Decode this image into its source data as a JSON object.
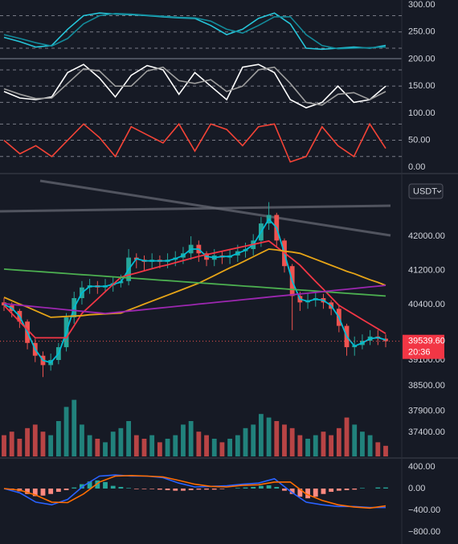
{
  "chart_data": [
    {
      "type": "oscillator",
      "ylim": [
        -10,
        309
      ],
      "yticks": [
        {
          "value": 300,
          "label": "300.00"
        },
        {
          "value": 250,
          "label": "250.00"
        },
        {
          "value": 200,
          "label": "200.00"
        },
        {
          "value": 150,
          "label": "150.00"
        },
        {
          "value": 100,
          "label": "100.00"
        },
        {
          "value": 50,
          "label": "50.00"
        },
        {
          "value": 0,
          "label": "0.00"
        }
      ],
      "levels": [
        280,
        250,
        220,
        180,
        150,
        120,
        80,
        50,
        20
      ],
      "series": [
        {
          "color": "#26c6da",
          "values": [
            240,
            232,
            222,
            225,
            255,
            280,
            285,
            283,
            282,
            280,
            278,
            276,
            275,
            262,
            245,
            255,
            275,
            285,
            265,
            220,
            218,
            220,
            222,
            220,
            225
          ]
        },
        {
          "color": "#138a9a",
          "values": [
            245,
            238,
            230,
            224,
            238,
            265,
            280,
            284,
            283,
            281,
            279,
            277,
            276,
            270,
            255,
            248,
            262,
            278,
            278,
            245,
            225,
            219,
            220,
            221,
            222
          ]
        },
        {
          "color": "#ffffff",
          "values": [
            140,
            128,
            125,
            130,
            175,
            190,
            165,
            130,
            170,
            188,
            180,
            135,
            175,
            150,
            125,
            185,
            190,
            175,
            125,
            110,
            120,
            150,
            120,
            125,
            150
          ]
        },
        {
          "color": "#9e9e9e",
          "values": [
            145,
            135,
            127,
            128,
            155,
            182,
            178,
            150,
            150,
            178,
            185,
            160,
            155,
            162,
            140,
            150,
            180,
            185,
            155,
            120,
            115,
            135,
            138,
            125,
            140
          ]
        },
        {
          "color": "#f44336",
          "values": [
            50,
            25,
            40,
            20,
            50,
            80,
            55,
            20,
            75,
            60,
            45,
            80,
            30,
            80,
            70,
            40,
            75,
            80,
            10,
            20,
            75,
            40,
            20,
            80,
            35
          ]
        }
      ]
    },
    {
      "type": "candlestick",
      "ylim": [
        36840,
        43300
      ],
      "currency": "USDT",
      "yticks": [
        {
          "value": 42000,
          "label": "42000.00"
        },
        {
          "value": 41200,
          "label": "41200.00"
        },
        {
          "value": 40400,
          "label": "40400.00"
        },
        {
          "value": 39100,
          "label": "39100.00"
        },
        {
          "value": 38500,
          "label": "38500.00"
        },
        {
          "value": 37900,
          "label": "37900.00"
        },
        {
          "value": 37400,
          "label": "37400.00"
        }
      ],
      "last_price": {
        "value": 39539.6,
        "label": "39539.60"
      },
      "countdown": "20:36",
      "open": [
        40450,
        40380,
        40250,
        40000,
        39500,
        39200,
        38980,
        39100,
        39400,
        40100,
        40550,
        40800,
        40850,
        40800,
        40850,
        40900,
        40950,
        41500,
        41450,
        41400,
        41450,
        41400,
        41450,
        41500,
        41600,
        41800,
        41600,
        41450,
        41550,
        41500,
        41550,
        41650,
        41700,
        41900,
        42300,
        42500,
        41900,
        41300,
        40600,
        40450,
        40500,
        40550,
        40450,
        40300,
        39900,
        39400,
        39450,
        39550,
        39650,
        39600
      ],
      "high": [
        40550,
        40450,
        40300,
        40050,
        39600,
        39300,
        39250,
        39500,
        40200,
        40700,
        40950,
        41000,
        40950,
        41000,
        41050,
        41100,
        41700,
        41600,
        41550,
        41600,
        41550,
        41600,
        41650,
        41750,
        42000,
        41900,
        41650,
        41700,
        41650,
        41700,
        41800,
        41850,
        42050,
        42450,
        42800,
        42550,
        41950,
        41350,
        40700,
        40650,
        40700,
        40650,
        40500,
        40400,
        39950,
        39650,
        39700,
        39800,
        39800,
        39700
      ],
      "low": [
        40250,
        40100,
        39850,
        39350,
        39050,
        38700,
        38850,
        39000,
        39300,
        39950,
        40400,
        40650,
        40650,
        40700,
        40700,
        40800,
        40850,
        41250,
        41200,
        41250,
        41250,
        41250,
        41300,
        41350,
        41450,
        41400,
        41300,
        41300,
        41350,
        41350,
        41400,
        41500,
        41550,
        41750,
        42150,
        41750,
        41150,
        39800,
        40250,
        40300,
        40350,
        40300,
        40150,
        39750,
        39200,
        39200,
        39350,
        39450,
        39450,
        39400
      ],
      "close": [
        40380,
        40250,
        40000,
        39500,
        39200,
        38980,
        39100,
        39400,
        40100,
        40550,
        40800,
        40850,
        40800,
        40850,
        40900,
        40950,
        41500,
        41450,
        41400,
        41450,
        41400,
        41450,
        41500,
        41600,
        41800,
        41600,
        41450,
        41550,
        41500,
        41550,
        41650,
        41700,
        41900,
        42300,
        42500,
        41900,
        41300,
        40600,
        40450,
        40500,
        40550,
        40450,
        40300,
        39900,
        39400,
        39450,
        39550,
        39650,
        39600,
        39540
      ],
      "lines": [
        {
          "color": "#00bcd4",
          "values": [
            40400,
            40315,
            40125,
            39750,
            39350,
            39090,
            39040,
            39250,
            39750,
            40325,
            40675,
            40825,
            40825,
            40825,
            40875,
            40925,
            41225,
            41475,
            41425,
            41425,
            41425,
            41425,
            41475,
            41550,
            41700,
            41700,
            41525,
            41500,
            41525,
            41525,
            41600,
            41675,
            41800,
            42100,
            42400,
            42200,
            41600,
            40950,
            40525,
            40475,
            40525,
            40500,
            40375,
            40100,
            39650,
            39425,
            39500,
            39600,
            39625,
            39570
          ]
        },
        {
          "color": "#f23645",
          "values": [
            40380,
            40190,
            40000,
            39810,
            39620,
            39620,
            39620,
            39620,
            39620,
            39900,
            40190,
            40360,
            40530,
            40700,
            40870,
            41040,
            41090,
            41140,
            41190,
            41240,
            41290,
            41330,
            41380,
            41430,
            41480,
            41530,
            41570,
            41610,
            41650,
            41690,
            41730,
            41770,
            41810,
            41850,
            41890,
            41750,
            41610,
            41470,
            41320,
            41130,
            40940,
            40760,
            40570,
            40380,
            40270,
            40160,
            40050,
            39940,
            39830,
            39720
          ]
        },
        {
          "color": "#e6a417",
          "values": [
            40570,
            40490,
            40410,
            40340,
            40260,
            40180,
            40100,
            40110,
            40120,
            40130,
            40140,
            40160,
            40170,
            40180,
            40190,
            40200,
            40270,
            40340,
            40410,
            40480,
            40550,
            40620,
            40690,
            40760,
            40830,
            40900,
            40990,
            41080,
            41170,
            41260,
            41340,
            41430,
            41520,
            41610,
            41700,
            41680,
            41650,
            41630,
            41600,
            41530,
            41460,
            41390,
            41320,
            41250,
            41180,
            41120,
            41050,
            40980,
            40920,
            40850
          ]
        },
        {
          "color": "#4caf50",
          "values": [
            41230,
            41217,
            41204,
            41191,
            41179,
            41166,
            41153,
            41140,
            41127,
            41114,
            41101,
            41089,
            41076,
            41063,
            41050,
            41037,
            41024,
            41011,
            40999,
            40986,
            40973,
            40960,
            40947,
            40934,
            40921,
            40909,
            40896,
            40883,
            40870,
            40857,
            40844,
            40831,
            40819,
            40806,
            40793,
            40780,
            40767,
            40754,
            40741,
            40729,
            40716,
            40703,
            40690,
            40677,
            40664,
            40651,
            40639,
            40626,
            40613,
            40600
          ]
        },
        {
          "color": "#9c27b0",
          "values": [
            40420,
            40402,
            40385,
            40367,
            40349,
            40332,
            40314,
            40296,
            40278,
            40261,
            40243,
            40225,
            40208,
            40190,
            40208,
            40226,
            40245,
            40263,
            40281,
            40300,
            40318,
            40336,
            40355,
            40373,
            40391,
            40410,
            40428,
            40446,
            40465,
            40483,
            40501,
            40520,
            40538,
            40556,
            40575,
            40593,
            40611,
            40630,
            40648,
            40666,
            40685,
            40703,
            40721,
            40740,
            40758,
            40776,
            40795,
            40813,
            40831,
            40850
          ]
        }
      ],
      "volume": {
        "ylim": [
          0,
          100
        ],
        "values": [
          30,
          35,
          25,
          40,
          45,
          35,
          30,
          50,
          70,
          80,
          45,
          30,
          25,
          20,
          35,
          40,
          50,
          30,
          25,
          30,
          20,
          25,
          30,
          45,
          50,
          35,
          30,
          25,
          20,
          25,
          30,
          40,
          45,
          60,
          55,
          50,
          45,
          40,
          30,
          25,
          30,
          35,
          30,
          40,
          55,
          45,
          35,
          30,
          20,
          15
        ]
      }
    },
    {
      "type": "macd",
      "ylim": [
        -1022,
        533
      ],
      "yticks": [
        {
          "value": 400,
          "label": "400.00"
        },
        {
          "value": 0,
          "label": "0.00"
        },
        {
          "value": -400,
          "label": "−400.00"
        },
        {
          "value": -800,
          "label": "−800.00"
        }
      ],
      "histogram": [
        0,
        -20,
        -50,
        -100,
        -140,
        -130,
        -100,
        -60,
        -30,
        20,
        80,
        130,
        150,
        120,
        50,
        30,
        10,
        -10,
        -10,
        -10,
        -20,
        -30,
        -40,
        -40,
        -30,
        -20,
        -20,
        -20,
        -10,
        0,
        10,
        20,
        30,
        50,
        60,
        30,
        -40,
        -100,
        -150,
        -180,
        -150,
        -100,
        -60,
        -40,
        -30,
        -20,
        10,
        0,
        20,
        20
      ],
      "series": [
        {
          "color": "#2962ff",
          "values": [
            0,
            -80,
            -250,
            -300,
            -200,
            50,
            230,
            250,
            230,
            230,
            200,
            100,
            30,
            40,
            50,
            80,
            100,
            180,
            -50,
            -250,
            -300,
            -330,
            -330,
            -350,
            -350
          ]
        },
        {
          "color": "#ff6d00",
          "values": [
            0,
            -30,
            -120,
            -250,
            -260,
            -100,
            120,
            230,
            240,
            230,
            215,
            150,
            80,
            40,
            30,
            60,
            70,
            120,
            120,
            -100,
            -220,
            -300,
            -340,
            -360,
            -320
          ]
        }
      ]
    }
  ]
}
